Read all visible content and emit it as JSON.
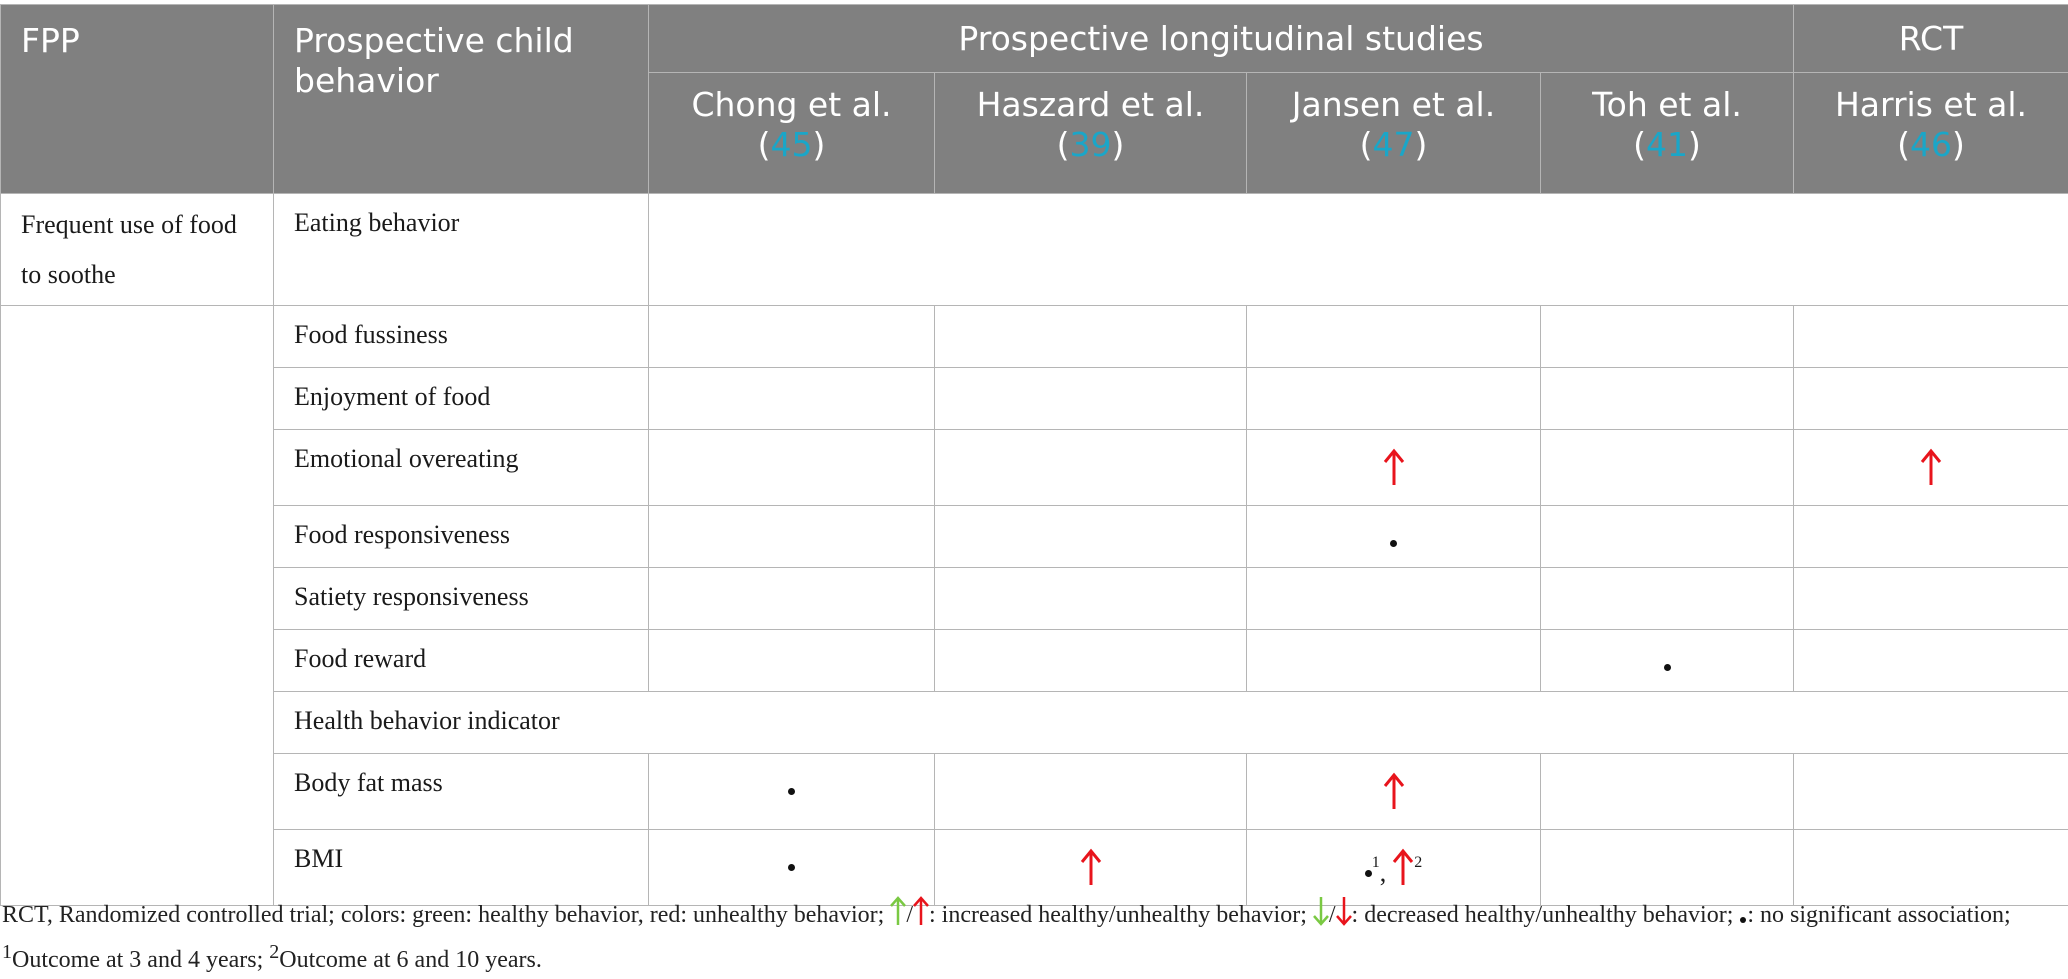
{
  "header": {
    "col_fpp": "FPP",
    "col_behavior": "Prospective child behavior",
    "group_longitudinal": "Prospective longitudinal studies",
    "group_rct": "RCT",
    "studies": [
      {
        "name": "Chong et al.",
        "ref": "45"
      },
      {
        "name": "Haszard et al.",
        "ref": "39"
      },
      {
        "name": "Jansen et al.",
        "ref": "47"
      },
      {
        "name": "Toh et al.",
        "ref": "41"
      },
      {
        "name": "Harris et al.",
        "ref": "46"
      }
    ]
  },
  "body": {
    "fpp": "Frequent use of food to soothe",
    "section_eating": "Eating behavior",
    "section_health": "Health behavior indicator",
    "rows": [
      {
        "label": "Food fussiness",
        "cells": [
          "",
          "",
          "",
          "",
          ""
        ]
      },
      {
        "label": "Enjoyment of food",
        "cells": [
          "",
          "",
          "",
          "",
          ""
        ]
      },
      {
        "label": "Emotional overeating",
        "cells": [
          "",
          "",
          "up-red",
          "",
          "up-red"
        ]
      },
      {
        "label": "Food responsiveness",
        "cells": [
          "",
          "",
          "dot",
          "",
          ""
        ]
      },
      {
        "label": "Satiety responsiveness",
        "cells": [
          "",
          "",
          "",
          "",
          ""
        ]
      },
      {
        "label": "Food reward",
        "cells": [
          "",
          "",
          "",
          "dot",
          ""
        ]
      },
      {
        "label": "Body fat mass",
        "cells": [
          "dot",
          "",
          "up-red",
          "",
          ""
        ]
      },
      {
        "label": "BMI",
        "cells": [
          "dot",
          "up-red",
          "dot-sup1-up-sup2",
          "",
          ""
        ]
      }
    ],
    "sup1": "1",
    "sup2": "2",
    "sup_sep": ","
  },
  "colors": {
    "header_bg": "#808080",
    "ref": "#1aa6c8",
    "red": "#e8141c",
    "green": "#7ac943",
    "border": "#b5b5b5"
  },
  "note": {
    "p1": "RCT, Randomized controlled trial; colors: green: healthy behavior, red: unhealthy behavior;",
    "slash": "/",
    "p2": ": increased healthy/unhealthy behavior;",
    "p3": ": decreased healthy/unhealthy behavior;",
    "p4": ": no significant association;",
    "sup1": "1",
    "p5": "Outcome at 3 and 4 years;",
    "sup2": "2",
    "p6": "Outcome at 6 and 10 years."
  }
}
